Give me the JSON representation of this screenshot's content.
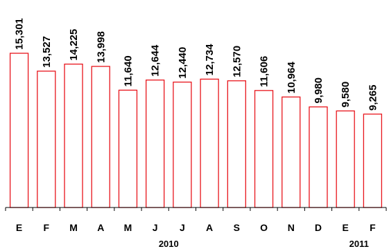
{
  "chart_data": {
    "type": "bar",
    "categories": [
      "E",
      "F",
      "M",
      "A",
      "M",
      "J",
      "J",
      "A",
      "S",
      "O",
      "N",
      "D",
      "E",
      "F"
    ],
    "values": [
      15301,
      13527,
      14225,
      13998,
      11640,
      12644,
      12440,
      12734,
      12570,
      11606,
      10964,
      9980,
      9580,
      9265
    ],
    "value_labels": [
      "15,301",
      "13,527",
      "14,225",
      "13,998",
      "11,640",
      "12,644",
      "12,440",
      "12,734",
      "12,570",
      "11,606",
      "10,964",
      "9,980",
      "9,580",
      "9,265"
    ],
    "groups": [
      {
        "label": "2010",
        "from": 0,
        "to": 11
      },
      {
        "label": "2011",
        "from": 12,
        "to": 13
      }
    ],
    "title": "",
    "xlabel": "",
    "ylabel": "",
    "ylim": [
      0,
      15301
    ],
    "grid": false,
    "bar_stroke_color": "#e8141b",
    "bar_fill_color": "#ffffff"
  }
}
